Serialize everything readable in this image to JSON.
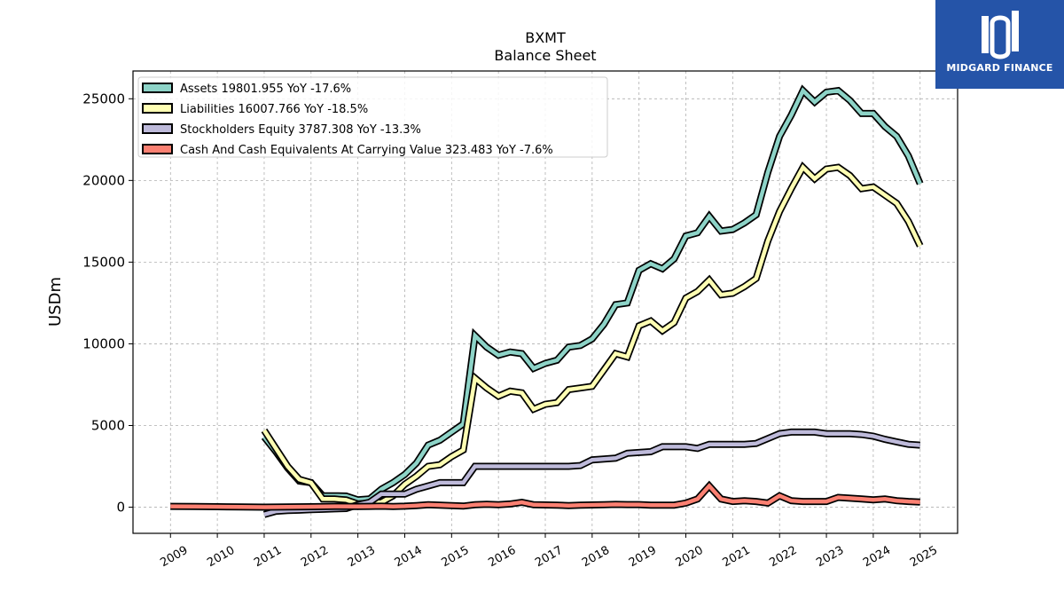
{
  "chart_data": {
    "type": "line",
    "title": "BXMT",
    "subtitle": "Balance  Sheet",
    "ylabel": "USDm",
    "xlabel": "",
    "ylim": [
      -1600,
      26700
    ],
    "xlim": [
      2008.2,
      2025.8
    ],
    "yticks": [
      0,
      5000,
      10000,
      15000,
      20000,
      25000
    ],
    "xticks": [
      "2009",
      "2010",
      "2011",
      "2012",
      "2013",
      "2014",
      "2015",
      "2016",
      "2017",
      "2018",
      "2019",
      "2020",
      "2021",
      "2022",
      "2023",
      "2024",
      "2025"
    ],
    "grid": true,
    "legend_position": "top-left",
    "series": [
      {
        "name": "Assets  19801.955 YoY -17.6%",
        "color": "#8dd3c7",
        "points": [
          [
            2011.0,
            4300
          ],
          [
            2011.25,
            3400
          ],
          [
            2011.5,
            2400
          ],
          [
            2011.75,
            1600
          ],
          [
            2012.0,
            1500
          ],
          [
            2012.25,
            700
          ],
          [
            2012.5,
            700
          ],
          [
            2012.75,
            680
          ],
          [
            2013.0,
            450
          ],
          [
            2013.25,
            500
          ],
          [
            2013.5,
            1100
          ],
          [
            2013.75,
            1500
          ],
          [
            2014.0,
            2000
          ],
          [
            2014.25,
            2700
          ],
          [
            2014.5,
            3800
          ],
          [
            2014.75,
            4100
          ],
          [
            2015.0,
            4600
          ],
          [
            2015.25,
            5100
          ],
          [
            2015.5,
            10500
          ],
          [
            2015.75,
            9800
          ],
          [
            2016.0,
            9300
          ],
          [
            2016.25,
            9500
          ],
          [
            2016.5,
            9400
          ],
          [
            2016.75,
            8500
          ],
          [
            2017.0,
            8800
          ],
          [
            2017.25,
            9000
          ],
          [
            2017.5,
            9800
          ],
          [
            2017.75,
            9900
          ],
          [
            2018.0,
            10300
          ],
          [
            2018.25,
            11200
          ],
          [
            2018.5,
            12400
          ],
          [
            2018.75,
            12500
          ],
          [
            2019.0,
            14500
          ],
          [
            2019.25,
            14900
          ],
          [
            2019.5,
            14600
          ],
          [
            2019.75,
            15200
          ],
          [
            2020.0,
            16600
          ],
          [
            2020.25,
            16800
          ],
          [
            2020.5,
            17800
          ],
          [
            2020.75,
            16900
          ],
          [
            2021.0,
            17000
          ],
          [
            2021.25,
            17400
          ],
          [
            2021.5,
            17900
          ],
          [
            2021.75,
            20500
          ],
          [
            2022.0,
            22700
          ],
          [
            2022.25,
            24000
          ],
          [
            2022.5,
            25500
          ],
          [
            2022.75,
            24800
          ],
          [
            2023.0,
            25400
          ],
          [
            2023.25,
            25500
          ],
          [
            2023.5,
            24900
          ],
          [
            2023.75,
            24100
          ],
          [
            2024.0,
            24100
          ],
          [
            2024.25,
            23300
          ],
          [
            2024.5,
            22700
          ],
          [
            2024.75,
            21500
          ],
          [
            2025.0,
            19800
          ]
        ]
      },
      {
        "name": "Liabilities  16007.766 YoY -18.5%",
        "color": "#ffffb3",
        "points": [
          [
            2011.0,
            4700
          ],
          [
            2011.25,
            3600
          ],
          [
            2011.5,
            2500
          ],
          [
            2011.75,
            1700
          ],
          [
            2012.0,
            1500
          ],
          [
            2012.25,
            500
          ],
          [
            2012.5,
            500
          ],
          [
            2012.75,
            450
          ],
          [
            2013.0,
            200
          ],
          [
            2013.25,
            250
          ],
          [
            2013.5,
            300
          ],
          [
            2013.75,
            700
          ],
          [
            2014.0,
            1400
          ],
          [
            2014.25,
            1900
          ],
          [
            2014.5,
            2500
          ],
          [
            2014.75,
            2600
          ],
          [
            2015.0,
            3100
          ],
          [
            2015.25,
            3500
          ],
          [
            2015.5,
            7900
          ],
          [
            2015.75,
            7300
          ],
          [
            2016.0,
            6800
          ],
          [
            2016.25,
            7100
          ],
          [
            2016.5,
            7000
          ],
          [
            2016.75,
            6000
          ],
          [
            2017.0,
            6300
          ],
          [
            2017.25,
            6400
          ],
          [
            2017.5,
            7200
          ],
          [
            2017.75,
            7300
          ],
          [
            2018.0,
            7400
          ],
          [
            2018.25,
            8400
          ],
          [
            2018.5,
            9400
          ],
          [
            2018.75,
            9200
          ],
          [
            2019.0,
            11100
          ],
          [
            2019.25,
            11400
          ],
          [
            2019.5,
            10800
          ],
          [
            2019.75,
            11300
          ],
          [
            2020.0,
            12800
          ],
          [
            2020.25,
            13200
          ],
          [
            2020.5,
            13900
          ],
          [
            2020.75,
            13000
          ],
          [
            2021.0,
            13100
          ],
          [
            2021.25,
            13500
          ],
          [
            2021.5,
            14000
          ],
          [
            2021.75,
            16300
          ],
          [
            2022.0,
            18100
          ],
          [
            2022.25,
            19500
          ],
          [
            2022.5,
            20800
          ],
          [
            2022.75,
            20100
          ],
          [
            2023.0,
            20700
          ],
          [
            2023.25,
            20800
          ],
          [
            2023.5,
            20300
          ],
          [
            2023.75,
            19500
          ],
          [
            2024.0,
            19600
          ],
          [
            2024.25,
            19100
          ],
          [
            2024.5,
            18600
          ],
          [
            2024.75,
            17500
          ],
          [
            2025.0,
            16000
          ]
        ]
      },
      {
        "name": "Stockholders Equity  3787.308 YoY -13.3%",
        "color": "#bebada",
        "points": [
          [
            2011.0,
            -450
          ],
          [
            2011.25,
            -250
          ],
          [
            2011.5,
            -200
          ],
          [
            2011.75,
            -180
          ],
          [
            2012.0,
            -150
          ],
          [
            2012.25,
            -130
          ],
          [
            2012.5,
            -100
          ],
          [
            2012.75,
            -80
          ],
          [
            2013.0,
            150
          ],
          [
            2013.25,
            300
          ],
          [
            2013.5,
            800
          ],
          [
            2013.75,
            800
          ],
          [
            2014.0,
            800
          ],
          [
            2014.25,
            1100
          ],
          [
            2014.5,
            1300
          ],
          [
            2014.75,
            1500
          ],
          [
            2015.0,
            1500
          ],
          [
            2015.25,
            1500
          ],
          [
            2015.5,
            2500
          ],
          [
            2015.75,
            2500
          ],
          [
            2016.0,
            2500
          ],
          [
            2016.25,
            2500
          ],
          [
            2016.5,
            2500
          ],
          [
            2016.75,
            2500
          ],
          [
            2017.0,
            2500
          ],
          [
            2017.25,
            2500
          ],
          [
            2017.5,
            2500
          ],
          [
            2017.75,
            2550
          ],
          [
            2018.0,
            2900
          ],
          [
            2018.25,
            2950
          ],
          [
            2018.5,
            3000
          ],
          [
            2018.75,
            3300
          ],
          [
            2019.0,
            3350
          ],
          [
            2019.25,
            3400
          ],
          [
            2019.5,
            3700
          ],
          [
            2019.75,
            3700
          ],
          [
            2020.0,
            3700
          ],
          [
            2020.25,
            3600
          ],
          [
            2020.5,
            3850
          ],
          [
            2020.75,
            3850
          ],
          [
            2021.0,
            3850
          ],
          [
            2021.25,
            3850
          ],
          [
            2021.5,
            3900
          ],
          [
            2021.75,
            4200
          ],
          [
            2022.0,
            4500
          ],
          [
            2022.25,
            4600
          ],
          [
            2022.5,
            4600
          ],
          [
            2022.75,
            4600
          ],
          [
            2023.0,
            4500
          ],
          [
            2023.25,
            4500
          ],
          [
            2023.5,
            4500
          ],
          [
            2023.75,
            4450
          ],
          [
            2024.0,
            4350
          ],
          [
            2024.25,
            4150
          ],
          [
            2024.5,
            4000
          ],
          [
            2024.75,
            3850
          ],
          [
            2025.0,
            3800
          ]
        ]
      },
      {
        "name": "Cash And Cash Equivalents At Carrying Value  323.483 YoY -7.6%",
        "color": "#fb8072",
        "points": [
          [
            2009.0,
            50
          ],
          [
            2009.5,
            40
          ],
          [
            2010.0,
            30
          ],
          [
            2010.5,
            20
          ],
          [
            2011.0,
            0
          ],
          [
            2011.5,
            20
          ],
          [
            2012.0,
            30
          ],
          [
            2012.5,
            50
          ],
          [
            2013.0,
            40
          ],
          [
            2013.25,
            50
          ],
          [
            2013.5,
            60
          ],
          [
            2013.75,
            40
          ],
          [
            2014.0,
            60
          ],
          [
            2014.25,
            100
          ],
          [
            2014.5,
            150
          ],
          [
            2014.75,
            120
          ],
          [
            2015.0,
            100
          ],
          [
            2015.25,
            70
          ],
          [
            2015.5,
            150
          ],
          [
            2015.75,
            180
          ],
          [
            2016.0,
            150
          ],
          [
            2016.25,
            200
          ],
          [
            2016.5,
            300
          ],
          [
            2016.75,
            150
          ],
          [
            2017.0,
            140
          ],
          [
            2017.25,
            120
          ],
          [
            2017.5,
            100
          ],
          [
            2017.75,
            120
          ],
          [
            2018.0,
            140
          ],
          [
            2018.25,
            150
          ],
          [
            2018.5,
            170
          ],
          [
            2018.75,
            160
          ],
          [
            2019.0,
            160
          ],
          [
            2019.25,
            130
          ],
          [
            2019.5,
            120
          ],
          [
            2019.75,
            130
          ],
          [
            2020.0,
            250
          ],
          [
            2020.25,
            500
          ],
          [
            2020.5,
            1300
          ],
          [
            2020.75,
            500
          ],
          [
            2021.0,
            350
          ],
          [
            2021.25,
            400
          ],
          [
            2021.5,
            350
          ],
          [
            2021.75,
            250
          ],
          [
            2022.0,
            700
          ],
          [
            2022.25,
            400
          ],
          [
            2022.5,
            350
          ],
          [
            2022.75,
            350
          ],
          [
            2023.0,
            350
          ],
          [
            2023.25,
            600
          ],
          [
            2023.5,
            550
          ],
          [
            2023.75,
            500
          ],
          [
            2024.0,
            450
          ],
          [
            2024.25,
            500
          ],
          [
            2024.5,
            400
          ],
          [
            2024.75,
            350
          ],
          [
            2025.0,
            320
          ]
        ]
      }
    ]
  },
  "logo": {
    "text": "MIDGARD FINANCE",
    "background": "#2554a8"
  }
}
